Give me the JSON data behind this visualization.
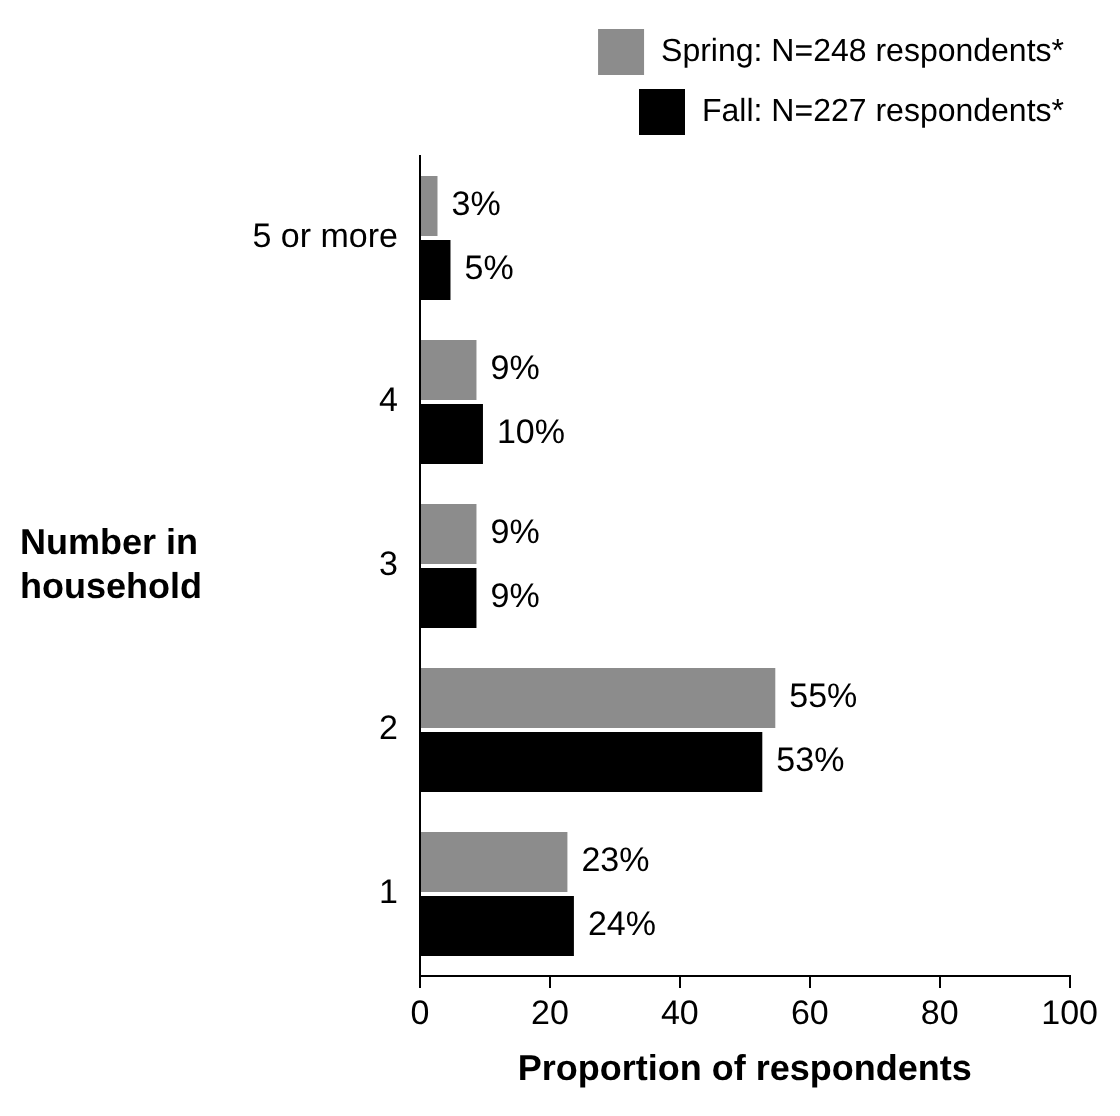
{
  "chart_data": {
    "type": "bar",
    "orientation": "horizontal",
    "categories": [
      "5 or more",
      "4",
      "3",
      "2",
      "1"
    ],
    "series": [
      {
        "name": "Spring: N=248 respondents*",
        "color": "#8c8c8c",
        "values": [
          3,
          9,
          9,
          55,
          23
        ],
        "value_labels": [
          "3%",
          "9%",
          "9%",
          "55%",
          "23%"
        ]
      },
      {
        "name": "Fall: N=227 respondents*",
        "color": "#000000",
        "values": [
          5,
          10,
          9,
          53,
          24
        ],
        "value_labels": [
          "5%",
          "10%",
          "9%",
          "53%",
          "24%"
        ]
      }
    ],
    "xlabel": "Proportion of respondents",
    "ylabel": "Number in household",
    "xlim": [
      0,
      100
    ],
    "xticks": [
      0,
      20,
      40,
      60,
      80,
      100
    ],
    "grid": false,
    "legend": "top right"
  }
}
